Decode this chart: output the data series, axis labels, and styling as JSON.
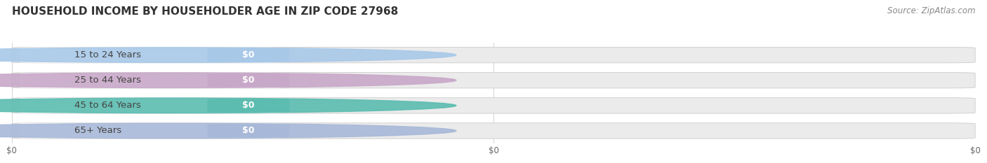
{
  "title": "HOUSEHOLD INCOME BY HOUSEHOLDER AGE IN ZIP CODE 27968",
  "source": "Source: ZipAtlas.com",
  "categories": [
    "15 to 24 Years",
    "25 to 44 Years",
    "45 to 64 Years",
    "65+ Years"
  ],
  "values": [
    0,
    0,
    0,
    0
  ],
  "bar_colors": [
    "#a8c8e8",
    "#c8a8c8",
    "#5bbcb0",
    "#a8b8d8"
  ],
  "bar_bg_color": "#ebebeb",
  "bar_inner_color": "#f8f8f8",
  "bar_border_color": "#cccccc",
  "background_color": "#ffffff",
  "title_fontsize": 11,
  "source_fontsize": 8.5,
  "label_fontsize": 9.5,
  "value_fontsize": 9,
  "xtick_labels": [
    "$0",
    "$0",
    "$0"
  ],
  "xtick_positions": [
    0.0,
    0.5,
    1.0
  ]
}
